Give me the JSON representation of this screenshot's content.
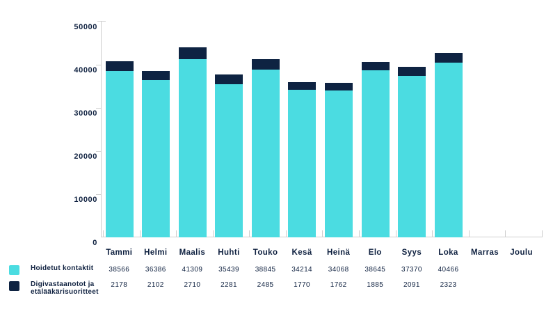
{
  "chart_data": {
    "type": "bar",
    "stacked": true,
    "title": "",
    "xlabel": "",
    "ylabel": "",
    "categories": [
      "Tammi",
      "Helmi",
      "Maalis",
      "Huhti",
      "Touko",
      "Kesä",
      "Heinä",
      "Elo",
      "Syys",
      "Loka",
      "Marras",
      "Joulu"
    ],
    "series": [
      {
        "name": "Hoidetut kontaktit",
        "color": "#4bdce1",
        "values": [
          38566,
          36386,
          41309,
          35439,
          38845,
          34214,
          34068,
          38645,
          37370,
          40466,
          null,
          null
        ]
      },
      {
        "name": "Digivastaanotot ja etälääkärisuoritteet",
        "color": "#0e2342",
        "values": [
          2178,
          2102,
          2710,
          2281,
          2485,
          1770,
          1762,
          1885,
          2091,
          2323,
          null,
          null
        ]
      }
    ],
    "ylim": [
      0,
      50000
    ],
    "ytick_values": [
      0,
      10000,
      20000,
      30000,
      40000,
      50000
    ],
    "ytick_labels": [
      "0",
      "10000",
      "20000",
      "30000",
      "40000",
      "50000"
    ],
    "grid": false,
    "legend_position": "bottom-left",
    "value_labels_shown_below_axis": true
  },
  "colors": {
    "background": "#ffffff",
    "axis": "#cfcfcf",
    "text": "#0f2140",
    "series_cyan": "#4bdce1",
    "series_navy": "#0e2342"
  }
}
